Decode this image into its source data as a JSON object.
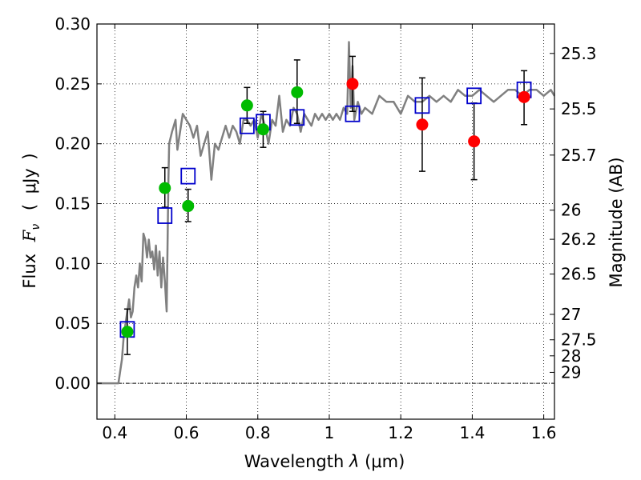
{
  "chart_data": {
    "type": "scatter",
    "xlabel_prefix": "Wavelength",
    "xlabel_symbol": "λ",
    "xlabel_unit": "(μm)",
    "ylabel_left_text": "Flux",
    "ylabel_left_symbol": "F",
    "ylabel_left_subscript": "ν",
    "ylabel_left_unit_open": "(",
    "ylabel_left_unit": "μJy",
    "ylabel_left_unit_close": ")",
    "ylabel_right": "Magnitude (AB)",
    "xlim": [
      0.35,
      1.63
    ],
    "ylim": [
      -0.03,
      0.3
    ],
    "xticks": [
      0.4,
      0.6,
      0.8,
      1.0,
      1.2,
      1.4,
      1.6
    ],
    "xtick_labels": [
      "0.4",
      "0.6",
      "0.8",
      "1",
      "1.2",
      "1.4",
      "1.6"
    ],
    "yticks": [
      0.0,
      0.05,
      0.1,
      0.15,
      0.2,
      0.25,
      0.3
    ],
    "ytick_labels": [
      "0.00",
      "0.05",
      "0.10",
      "0.15",
      "0.20",
      "0.25",
      "0.30"
    ],
    "mag_ticks": [
      {
        "label": "25.3",
        "mag": 25.3
      },
      {
        "label": "25.5",
        "mag": 25.5
      },
      {
        "label": "25.7",
        "mag": 25.7
      },
      {
        "label": "26",
        "mag": 26.0
      },
      {
        "label": "26.2",
        "mag": 26.2
      },
      {
        "label": "26.5",
        "mag": 26.5
      },
      {
        "label": "27",
        "mag": 27.0
      },
      {
        "label": "27.5",
        "mag": 27.5
      },
      {
        "label": "28",
        "mag": 28.0
      },
      {
        "label": "29",
        "mag": 29.0
      }
    ],
    "grid": true,
    "colors": {
      "model": "#808080",
      "green": "#00bb00",
      "red": "#ff0000",
      "square": "#0000cc",
      "errorbar": "#000000"
    },
    "model_spectrum": {
      "x": [
        0.35,
        0.41,
        0.415,
        0.42,
        0.425,
        0.43,
        0.435,
        0.44,
        0.445,
        0.45,
        0.455,
        0.46,
        0.465,
        0.47,
        0.475,
        0.48,
        0.485,
        0.49,
        0.495,
        0.5,
        0.505,
        0.51,
        0.515,
        0.52,
        0.525,
        0.53,
        0.535,
        0.54,
        0.545,
        0.55,
        0.552,
        0.56,
        0.57,
        0.575,
        0.58,
        0.59,
        0.6,
        0.61,
        0.62,
        0.63,
        0.64,
        0.65,
        0.66,
        0.67,
        0.68,
        0.69,
        0.7,
        0.71,
        0.72,
        0.73,
        0.74,
        0.75,
        0.76,
        0.77,
        0.78,
        0.79,
        0.8,
        0.81,
        0.82,
        0.83,
        0.84,
        0.85,
        0.86,
        0.87,
        0.88,
        0.89,
        0.9,
        0.91,
        0.92,
        0.93,
        0.94,
        0.95,
        0.96,
        0.97,
        0.98,
        0.99,
        1.0,
        1.01,
        1.02,
        1.03,
        1.04,
        1.05,
        1.055,
        1.06,
        1.065,
        1.07,
        1.08,
        1.09,
        1.1,
        1.12,
        1.14,
        1.16,
        1.18,
        1.2,
        1.22,
        1.24,
        1.26,
        1.28,
        1.3,
        1.32,
        1.34,
        1.36,
        1.38,
        1.4,
        1.42,
        1.44,
        1.46,
        1.48,
        1.5,
        1.52,
        1.54,
        1.56,
        1.58,
        1.6,
        1.62,
        1.63
      ],
      "y": [
        0.0,
        0.0,
        0.01,
        0.02,
        0.04,
        0.05,
        0.06,
        0.07,
        0.055,
        0.06,
        0.08,
        0.09,
        0.08,
        0.1,
        0.085,
        0.125,
        0.12,
        0.105,
        0.12,
        0.105,
        0.11,
        0.095,
        0.115,
        0.09,
        0.11,
        0.08,
        0.105,
        0.085,
        0.06,
        0.17,
        0.2,
        0.21,
        0.22,
        0.195,
        0.205,
        0.225,
        0.22,
        0.215,
        0.205,
        0.215,
        0.19,
        0.2,
        0.21,
        0.17,
        0.2,
        0.195,
        0.205,
        0.215,
        0.205,
        0.215,
        0.21,
        0.2,
        0.22,
        0.22,
        0.215,
        0.22,
        0.205,
        0.225,
        0.215,
        0.2,
        0.22,
        0.215,
        0.24,
        0.21,
        0.22,
        0.215,
        0.23,
        0.225,
        0.21,
        0.225,
        0.22,
        0.215,
        0.225,
        0.22,
        0.225,
        0.22,
        0.225,
        0.22,
        0.225,
        0.22,
        0.23,
        0.225,
        0.285,
        0.23,
        0.265,
        0.22,
        0.235,
        0.225,
        0.23,
        0.225,
        0.24,
        0.235,
        0.235,
        0.225,
        0.24,
        0.235,
        0.235,
        0.24,
        0.235,
        0.24,
        0.235,
        0.245,
        0.24,
        0.24,
        0.245,
        0.24,
        0.235,
        0.24,
        0.245,
        0.245,
        0.24,
        0.245,
        0.245,
        0.24,
        0.245,
        0.24
      ]
    },
    "green_points": {
      "x": [
        0.435,
        0.54,
        0.605,
        0.77,
        0.815,
        0.91
      ],
      "y": [
        0.043,
        0.163,
        0.148,
        0.232,
        0.212,
        0.243
      ]
    },
    "red_points": {
      "x": [
        1.065,
        1.26,
        1.405,
        1.545
      ],
      "y": [
        0.25,
        0.216,
        0.202,
        0.239
      ]
    },
    "squares": {
      "x": [
        0.435,
        0.54,
        0.605,
        0.77,
        0.815,
        0.91,
        1.065,
        1.26,
        1.405,
        1.545
      ],
      "y": [
        0.045,
        0.14,
        0.173,
        0.215,
        0.218,
        0.222,
        0.225,
        0.232,
        0.24,
        0.245
      ]
    },
    "errorbars": [
      {
        "x": 0.435,
        "low": 0.024,
        "high": 0.062
      },
      {
        "x": 0.54,
        "low": 0.147,
        "high": 0.18
      },
      {
        "x": 0.605,
        "low": 0.135,
        "high": 0.162
      },
      {
        "x": 0.77,
        "low": 0.217,
        "high": 0.247
      },
      {
        "x": 0.815,
        "low": 0.197,
        "high": 0.227
      },
      {
        "x": 0.91,
        "low": 0.217,
        "high": 0.27
      },
      {
        "x": 1.065,
        "low": 0.227,
        "high": 0.273
      },
      {
        "x": 1.26,
        "low": 0.177,
        "high": 0.255
      },
      {
        "x": 1.405,
        "low": 0.17,
        "high": 0.234
      },
      {
        "x": 1.545,
        "low": 0.216,
        "high": 0.261
      }
    ]
  }
}
